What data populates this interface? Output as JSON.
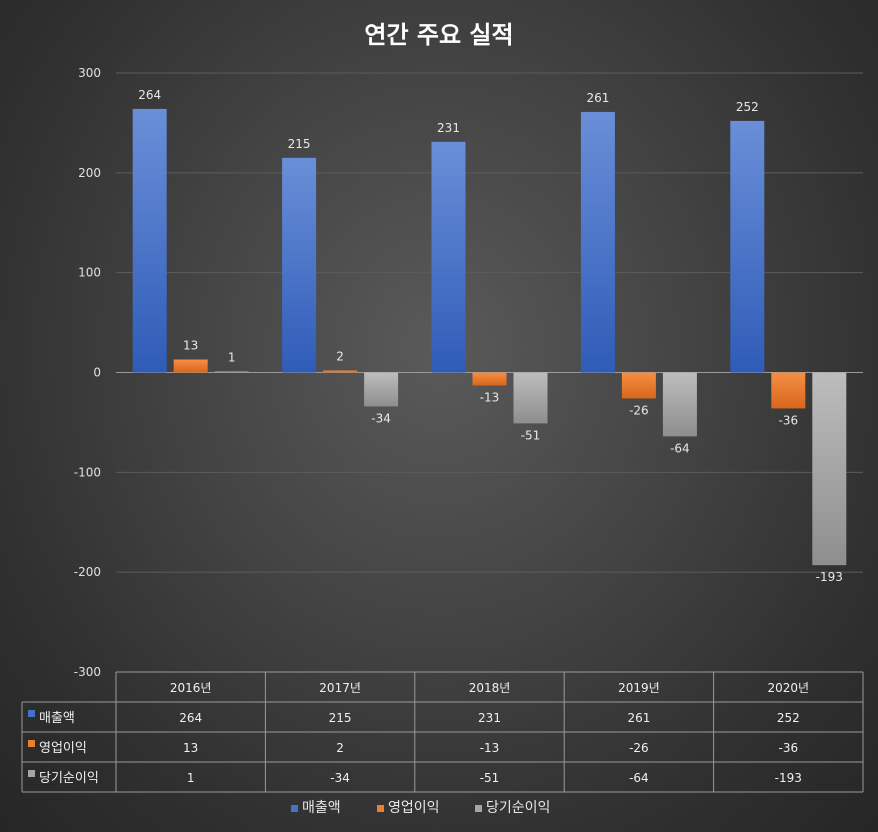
{
  "chart_data": {
    "type": "bar",
    "title": "연간 주요 실적",
    "categories": [
      "2016년",
      "2017년",
      "2018년",
      "2019년",
      "2020년"
    ],
    "series": [
      {
        "name": "매출액",
        "values": [
          264,
          215,
          231,
          261,
          252
        ],
        "color": "#4472C4"
      },
      {
        "name": "영업이익",
        "values": [
          13,
          2,
          -13,
          -26,
          -36
        ],
        "color": "#ED7D31"
      },
      {
        "name": "당기순이익",
        "values": [
          1,
          -34,
          -51,
          -64,
          -193
        ],
        "color": "#A5A5A5"
      }
    ],
    "ylim": [
      -300,
      300
    ],
    "yticks": [
      300,
      200,
      100,
      0,
      -100,
      -200,
      -300
    ],
    "grid": true,
    "data_table": true,
    "legend_position": "bottom"
  }
}
